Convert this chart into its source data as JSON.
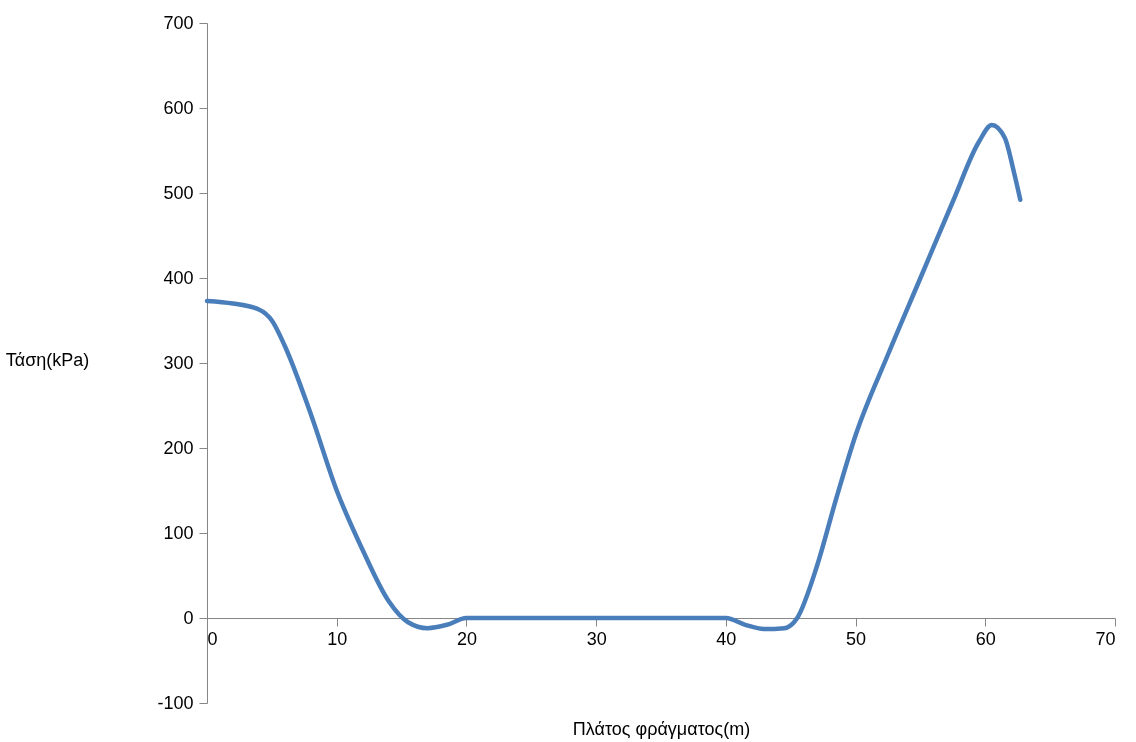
{
  "chart_data": {
    "type": "line",
    "xlabel": "Πλάτος φράγματος(m)",
    "ylabel": "Τάση(kPa)",
    "x": [
      0,
      2,
      4,
      5,
      6,
      8,
      10,
      12,
      14,
      15.5,
      17,
      18.5,
      20,
      30,
      40,
      41.5,
      43,
      44.5,
      45.5,
      47,
      48.5,
      50,
      52.5,
      55,
      57.5,
      59.5,
      60.5,
      61.5,
      62.2,
      62.7
    ],
    "series": [
      {
        "color": "#4a7ebb",
        "values": [
          373,
          370,
          363,
          350,
          320,
          240,
          150,
          80,
          20,
          -5,
          -12,
          -8,
          0,
          0,
          0,
          -8,
          -13,
          -12,
          0,
          60,
          140,
          215,
          310,
          400,
          490,
          560,
          580,
          565,
          525,
          492
        ]
      }
    ],
    "xlim": [
      0,
      70
    ],
    "xticks": [
      0,
      10,
      20,
      30,
      40,
      50,
      60,
      70
    ],
    "ylim": [
      -100,
      700
    ],
    "yticks": [
      -100,
      0,
      100,
      200,
      300,
      400,
      500,
      600,
      700
    ],
    "grid": false,
    "legend": false,
    "marker": "none",
    "line_style": "solid"
  }
}
